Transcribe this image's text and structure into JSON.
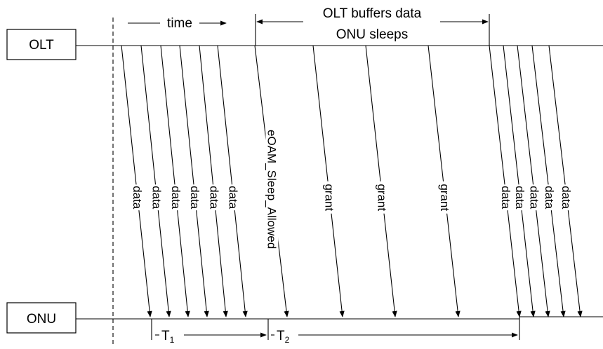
{
  "nodes": {
    "olt": "OLT",
    "onu": "ONU"
  },
  "labels": {
    "time": "time",
    "olt_buffers": "OLT buffers data",
    "onu_sleeps": "ONU sleeps",
    "t1": "T",
    "t1_sub": "1",
    "t2": "T",
    "t2_sub": "2"
  },
  "messages": [
    "data",
    "data",
    "data",
    "data",
    "data",
    "data",
    "eOAM_Sleep_Allowed",
    "grant",
    "grant",
    "grant",
    "data",
    "data",
    "data",
    "data",
    "data"
  ]
}
